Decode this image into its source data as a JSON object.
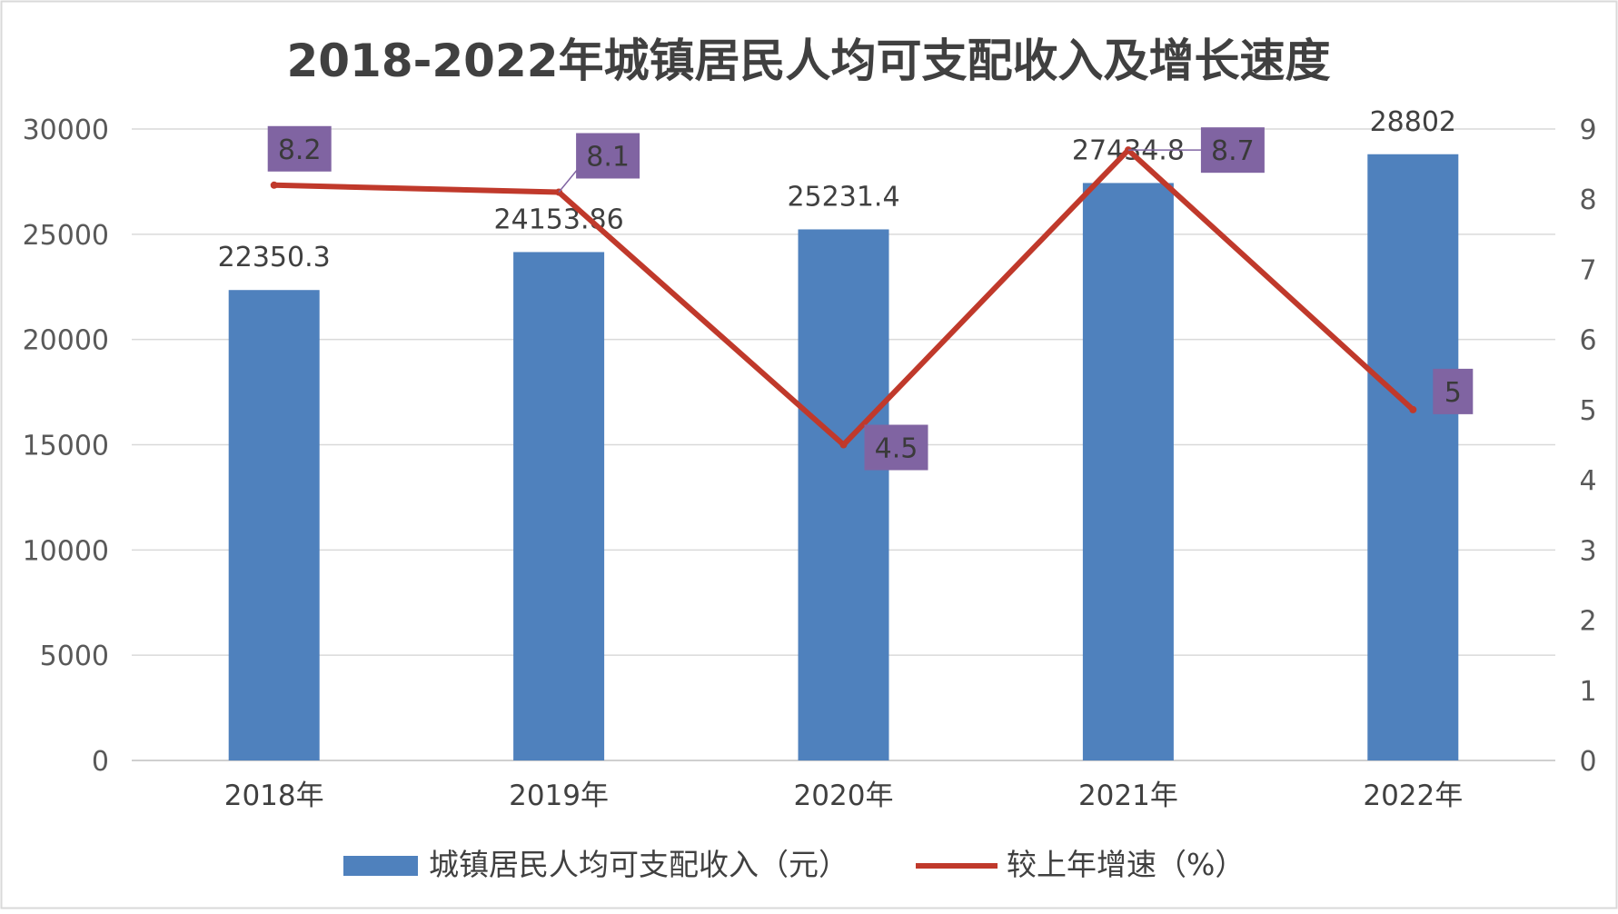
{
  "chart_data": {
    "type": "bar",
    "title": "2018-2022年城镇居民人均可支配收入及增长速度",
    "categories": [
      "2018年",
      "2019年",
      "2020年",
      "2021年",
      "2022年"
    ],
    "series": [
      {
        "name": "城镇居民人均可支配收入（元）",
        "type": "bar",
        "axis": "left",
        "color": "#4F81BD",
        "values": [
          22350.3,
          24153.86,
          25231.4,
          27434.8,
          28802
        ],
        "labels": [
          "22350.3",
          "24153.86",
          "25231.4",
          "27434.8",
          "28802"
        ]
      },
      {
        "name": "较上年增速（%）",
        "type": "line",
        "axis": "right",
        "color": "#C0392B",
        "values": [
          8.2,
          8.1,
          4.5,
          8.7,
          5
        ],
        "labels": [
          "8.2",
          "8.1",
          "4.5",
          "8.7",
          "5"
        ],
        "label_bg": "#8064A2"
      }
    ],
    "y_left": {
      "ylim": [
        0,
        30000
      ],
      "ticks": [
        "0",
        "5000",
        "10000",
        "15000",
        "20000",
        "25000",
        "30000"
      ]
    },
    "y_right": {
      "ylim": [
        0,
        9
      ],
      "ticks": [
        "0",
        "1",
        "2",
        "3",
        "4",
        "5",
        "6",
        "7",
        "8",
        "9"
      ]
    },
    "grid": true,
    "legend_position": "bottom"
  }
}
